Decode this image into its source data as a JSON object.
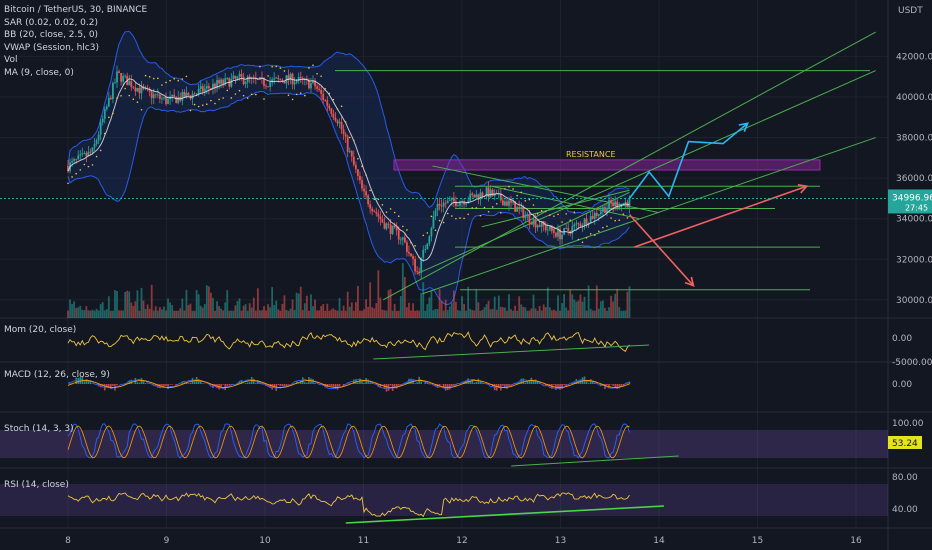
{
  "legend": [
    "Bitcoin / TetherUS, 30, BINANCE",
    "SAR (0.02, 0.02, 0.2)",
    "BB (20, close, 2.5, 0)",
    "VWAP (Session, hlc3)",
    "Vol",
    "MA (9, close, 0)"
  ],
  "indicators": {
    "mom": "Mom (20, close)",
    "macd": "MACD (12, 26, close, 9)",
    "stoch": "Stoch (14, 3, 3)",
    "rsi": "RSI (14, close)"
  },
  "annotations": {
    "resistance": "RESISTANCE"
  },
  "colors": {
    "background": "#131722",
    "up": "#26a69a",
    "down": "#ef5350",
    "bollinger": "#2962ff",
    "trendline": "#4caf50",
    "resistance_zone": "#9c27b0",
    "projection_up": "#29b6f6",
    "projection_down": "#f06262",
    "oscillator": "#f0c541",
    "price_line": "#26a69a"
  },
  "chart_data": {
    "type": "candlestick",
    "x_ticks": [
      "8",
      "9",
      "10",
      "11",
      "12",
      "13",
      "14",
      "15",
      "16"
    ],
    "price_axis": {
      "unit": "USDT",
      "ticks": [
        "42000.00",
        "40000.00",
        "38000.00",
        "36000.00",
        "34000.00",
        "32000.00",
        "30000.00"
      ],
      "ylim": [
        29500,
        43300
      ]
    },
    "current_price": "34996.96",
    "countdown": "27:45",
    "price_path": [
      [
        0,
        36600
      ],
      [
        0.25,
        37300
      ],
      [
        0.5,
        41100
      ],
      [
        0.75,
        40300
      ],
      [
        1.0,
        39800
      ],
      [
        1.25,
        40100
      ],
      [
        1.5,
        40600
      ],
      [
        1.75,
        40900
      ],
      [
        2.0,
        40700
      ],
      [
        2.25,
        40900
      ],
      [
        2.5,
        40600
      ],
      [
        2.75,
        38800
      ],
      [
        3.0,
        35200
      ],
      [
        3.2,
        33800
      ],
      [
        3.4,
        33000
      ],
      [
        3.55,
        31300
      ],
      [
        3.75,
        34700
      ],
      [
        4.0,
        34900
      ],
      [
        4.25,
        35300
      ],
      [
        4.5,
        34700
      ],
      [
        4.75,
        33800
      ],
      [
        5.0,
        33200
      ],
      [
        5.25,
        33900
      ],
      [
        5.5,
        34700
      ],
      [
        5.7,
        34800
      ]
    ],
    "horizontal_levels": [
      41300,
      35600,
      34500,
      32600,
      30500
    ],
    "resistance_zone": [
      36400,
      36900
    ],
    "projection_up": [
      [
        5.7,
        35000
      ],
      [
        5.9,
        36300
      ],
      [
        6.1,
        35100
      ],
      [
        6.3,
        37800
      ],
      [
        6.65,
        37700
      ],
      [
        6.9,
        38700
      ]
    ],
    "projection_down_1": [
      [
        5.7,
        34200
      ],
      [
        6.35,
        30700
      ]
    ],
    "projection_down_2": [
      [
        5.75,
        32600
      ],
      [
        7.5,
        35600
      ]
    ],
    "mom": {
      "ticks": [
        "0.00",
        "-5000.00"
      ]
    },
    "macd": {
      "ticks": [
        "0.00"
      ]
    },
    "stoch": {
      "ticks": [
        "100.00",
        "53.24"
      ],
      "value": "53.24"
    },
    "rsi": {
      "ticks": [
        "80.00",
        "40.00"
      ]
    }
  }
}
